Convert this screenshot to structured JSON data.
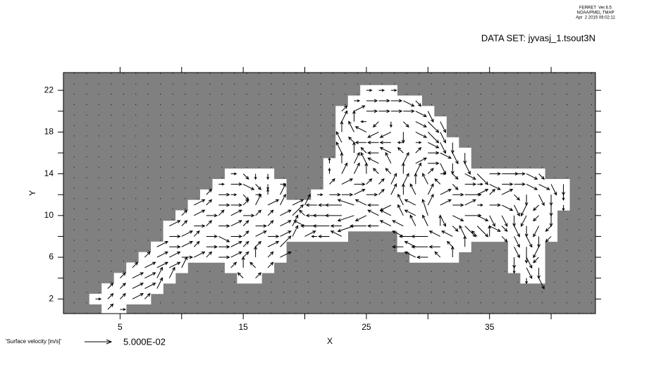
{
  "header": {
    "lines": [
      "FERRET  Ver.6.5",
      "NOAA/PMEL TMAP",
      "Apr  2 2015 06:02:11"
    ],
    "dataset": "DATA SET: jyvasj_1.tsout3N"
  },
  "chart_data": {
    "type": "vector",
    "xlabel": "X",
    "ylabel": "Y",
    "xlim": [
      0.4,
      43.6
    ],
    "ylim": [
      0.6,
      23.7
    ],
    "xticks": [
      5,
      15,
      25,
      35
    ],
    "x_minor_ticks": [
      10,
      20,
      30,
      40
    ],
    "yticks": [
      2,
      6,
      10,
      14,
      18,
      22
    ],
    "y_minor_ticks": [
      4,
      8,
      12,
      16,
      20
    ],
    "background_color": "#808080",
    "ocean_color": "#ffffff",
    "vector_color": "#000000",
    "reference": {
      "label": "'Surface velocity [m/s]'",
      "value": 0.05,
      "value_label": "5.000E-02"
    },
    "rows": [
      {
        "y": 1,
        "x": [
          4,
          5
        ],
        "u": [
          0.01,
          0.01
        ],
        "v": [
          0.01,
          0
        ]
      },
      {
        "y": 2,
        "x": [
          3,
          4,
          5,
          6,
          7
        ],
        "u": [
          0.01,
          0.01,
          0.01,
          0.02,
          0.01
        ],
        "v": [
          0,
          0.01,
          0.01,
          0.01,
          0.01
        ]
      },
      {
        "y": 3,
        "x": [
          4,
          5,
          6,
          7,
          8
        ],
        "u": [
          0.01,
          0.01,
          0.02,
          0.02,
          0.01
        ],
        "v": [
          0.01,
          0.01,
          0.01,
          0.01,
          0.02
        ]
      },
      {
        "y": 4,
        "x": [
          5,
          6,
          7,
          8,
          9,
          15,
          16,
          38,
          39
        ],
        "u": [
          0.01,
          0.02,
          0.02,
          0.01,
          0.01,
          -0.01,
          0.01,
          0,
          0.01
        ],
        "v": [
          0.01,
          0.01,
          0.01,
          0.02,
          0.02,
          0.01,
          0.01,
          -0.01,
          -0.02
        ]
      },
      {
        "y": 5,
        "x": [
          6,
          7,
          8,
          9,
          10,
          14,
          15,
          16,
          17,
          37,
          38,
          39
        ],
        "u": [
          0.01,
          0.02,
          0.02,
          0.02,
          0.01,
          0.01,
          0,
          -0.01,
          0.01,
          0,
          0.01,
          0
        ],
        "v": [
          0.01,
          0.01,
          0.01,
          0.01,
          0.02,
          0.01,
          0.02,
          0.01,
          0.01,
          -0.01,
          -0.02,
          -0.02
        ]
      },
      {
        "y": 6,
        "x": [
          7,
          8,
          9,
          10,
          11,
          12,
          13,
          14,
          15,
          16,
          17,
          18,
          29,
          30,
          31,
          32,
          37,
          38,
          39
        ],
        "u": [
          0.01,
          0.02,
          0.02,
          0.02,
          0.02,
          0.01,
          0.02,
          0.02,
          0.01,
          0,
          0.01,
          0.02,
          -0.02,
          -0.02,
          -0.01,
          0,
          0,
          0.01,
          -0.01
        ],
        "v": [
          0.01,
          0.01,
          0.01,
          0,
          0.01,
          0.01,
          0,
          0.01,
          0.01,
          0.02,
          0.01,
          0.01,
          0.01,
          0,
          0.01,
          0.02,
          -0.02,
          -0.02,
          -0.01
        ]
      },
      {
        "y": 7,
        "x": [
          8,
          9,
          10,
          11,
          12,
          13,
          14,
          15,
          16,
          17,
          18,
          28,
          29,
          30,
          31,
          32,
          33,
          37,
          38,
          39
        ],
        "u": [
          0.02,
          0.02,
          0.02,
          0.01,
          0.02,
          0.02,
          0.02,
          0.01,
          0.01,
          0.02,
          0.02,
          -0.02,
          -0.02,
          -0.03,
          -0.02,
          -0.01,
          0,
          0.01,
          0,
          -0.01
        ],
        "v": [
          0.01,
          0,
          0.01,
          0.01,
          0,
          0,
          0.01,
          0.01,
          0.01,
          0.01,
          0.02,
          0,
          0.01,
          0,
          0,
          0.01,
          0.02,
          -0.02,
          -0.03,
          -0.02
        ]
      },
      {
        "y": 8,
        "x": [
          9,
          10,
          11,
          12,
          13,
          14,
          15,
          16,
          17,
          18,
          19,
          20,
          21,
          22,
          23,
          28,
          29,
          30,
          31,
          32,
          33,
          34,
          35,
          36,
          37,
          38,
          39,
          40
        ],
        "u": [
          0.02,
          0.02,
          0.01,
          0.02,
          0.02,
          0.02,
          0.01,
          0.02,
          0.02,
          0.02,
          0.01,
          0.02,
          -0.01,
          -0.02,
          -0.02,
          -0.02,
          -0.03,
          -0.03,
          -0.02,
          -0.02,
          -0.01,
          -0.01,
          0,
          0.01,
          0.01,
          0.01,
          0,
          -0.01
        ],
        "v": [
          0,
          0.01,
          0.01,
          0,
          -0.01,
          0,
          0.01,
          0.01,
          0,
          0.01,
          0.02,
          0.01,
          0,
          0,
          0.01,
          0.01,
          0,
          0,
          0.01,
          0.01,
          0.02,
          0.01,
          0.02,
          -0.01,
          -0.02,
          -0.02,
          -0.02,
          -0.01
        ]
      },
      {
        "y": 9,
        "x": [
          9,
          10,
          11,
          12,
          13,
          14,
          15,
          16,
          17,
          18,
          19,
          20,
          21,
          22,
          23,
          24,
          25,
          26,
          27,
          28,
          29,
          30,
          31,
          32,
          33,
          34,
          35,
          36,
          37,
          38,
          39,
          40
        ],
        "u": [
          0.02,
          0.01,
          0.02,
          0.01,
          0.02,
          0.02,
          0.01,
          0.02,
          0.01,
          0.02,
          0.01,
          -0.02,
          -0.03,
          -0.03,
          -0.02,
          -0.03,
          -0.03,
          -0.02,
          -0.02,
          -0.02,
          -0.01,
          -0.01,
          0,
          0.01,
          0.02,
          0.02,
          0.02,
          0.01,
          0.01,
          0,
          -0.01,
          -0.01
        ],
        "v": [
          0.01,
          0.01,
          0,
          0.01,
          0,
          0.01,
          0.01,
          0,
          0.01,
          0.01,
          0.02,
          0.01,
          0,
          0,
          0,
          -0.01,
          0,
          0,
          0.01,
          0.01,
          0.02,
          0.02,
          0.02,
          -0.01,
          -0.02,
          -0.02,
          -0.01,
          -0.01,
          -0.02,
          -0.02,
          -0.02,
          -0.01
        ]
      },
      {
        "y": 10,
        "x": [
          10,
          11,
          12,
          13,
          14,
          15,
          16,
          17,
          18,
          19,
          20,
          21,
          22,
          23,
          24,
          25,
          26,
          27,
          28,
          29,
          30,
          31,
          32,
          33,
          34,
          35,
          36,
          37,
          38,
          39,
          40
        ],
        "u": [
          0.01,
          0.02,
          0.02,
          0.01,
          0.02,
          0.02,
          0.01,
          0.01,
          0.02,
          0.02,
          -0.01,
          -0.02,
          -0.03,
          -0.03,
          -0.03,
          -0.02,
          -0.02,
          -0.02,
          -0.01,
          -0.02,
          -0.01,
          0.01,
          0.02,
          0.03,
          0.02,
          0.01,
          0.01,
          0,
          -0.01,
          -0.01,
          0
        ],
        "v": [
          0.01,
          0.01,
          0,
          0.01,
          0.01,
          0,
          0.01,
          0.01,
          0.01,
          0.02,
          0.01,
          0,
          0,
          0,
          -0.01,
          -0.01,
          0.01,
          0.01,
          0.02,
          0.01,
          0.03,
          -0.02,
          -0.01,
          0,
          -0.01,
          -0.02,
          -0.02,
          -0.02,
          -0.02,
          -0.01,
          -0.02
        ]
      },
      {
        "y": 11,
        "x": [
          11,
          12,
          13,
          14,
          15,
          16,
          17,
          18,
          19,
          20,
          21,
          22,
          23,
          24,
          25,
          26,
          27,
          28,
          29,
          30,
          31,
          32,
          33,
          34,
          35,
          36,
          37,
          38,
          39,
          40,
          41
        ],
        "u": [
          0.02,
          0.01,
          0.02,
          0.02,
          0.01,
          0.01,
          0.02,
          0.01,
          0.02,
          0.01,
          -0.02,
          -0.02,
          -0.03,
          -0.03,
          -0.02,
          -0.02,
          -0.02,
          -0.01,
          -0.02,
          0.01,
          0.02,
          0.02,
          0.02,
          0.01,
          0.02,
          0.02,
          0.01,
          -0.01,
          -0.01,
          0,
          0
        ],
        "v": [
          0.01,
          0.01,
          0,
          0,
          0.01,
          0.02,
          0.01,
          0.02,
          0.01,
          0.02,
          0,
          0,
          0,
          0.01,
          0.01,
          0,
          -0.01,
          0.02,
          0.01,
          0.02,
          0.01,
          0,
          0.01,
          0,
          0,
          -0.01,
          -0.02,
          -0.02,
          -0.01,
          -0.02,
          -0.01
        ]
      },
      {
        "y": 12,
        "x": [
          12,
          13,
          14,
          15,
          16,
          17,
          18,
          21,
          22,
          23,
          24,
          25,
          26,
          27,
          28,
          29,
          30,
          31,
          32,
          33,
          34,
          35,
          36,
          37,
          38,
          39,
          40,
          41
        ],
        "u": [
          0.01,
          0.02,
          0.01,
          0.01,
          0.01,
          0,
          0.01,
          0.01,
          0.02,
          0.02,
          0.02,
          0.02,
          0.01,
          0.01,
          0,
          -0.01,
          0.01,
          0.02,
          0.02,
          0.03,
          0.02,
          0.01,
          0.02,
          0.01,
          0,
          0.01,
          0,
          0
        ],
        "v": [
          0.01,
          0,
          0,
          -0.01,
          0,
          0.01,
          0.02,
          0,
          0,
          0,
          0.01,
          0,
          0.01,
          0.02,
          0.02,
          0.02,
          0.02,
          0.01,
          0,
          0,
          0.01,
          0.01,
          0.01,
          -0.01,
          -0.02,
          -0.02,
          -0.02,
          -0.01
        ]
      },
      {
        "y": 13,
        "x": [
          13,
          14,
          15,
          16,
          17,
          18,
          22,
          23,
          24,
          25,
          26,
          27,
          28,
          29,
          30,
          31,
          32,
          33,
          34,
          35,
          36,
          37,
          38,
          39,
          40,
          41
        ],
        "u": [
          0.01,
          0.02,
          0.02,
          0.01,
          0,
          0.01,
          0.01,
          0.02,
          0.02,
          0.01,
          0.01,
          0.01,
          0.01,
          0,
          -0.01,
          -0.01,
          0.01,
          0.02,
          0.01,
          0.02,
          0.02,
          0.02,
          0.02,
          0.02,
          0.01,
          0
        ],
        "v": [
          0,
          0,
          -0.01,
          -0.01,
          -0.01,
          0,
          0.01,
          0.01,
          0,
          0.01,
          0.01,
          0.02,
          0.02,
          0.02,
          0.02,
          0.01,
          -0.01,
          0,
          0,
          -0.01,
          0,
          0,
          -0.01,
          -0.01,
          -0.02,
          -0.02
        ]
      },
      {
        "y": 14,
        "x": [
          14,
          15,
          16,
          17,
          22,
          23,
          24,
          25,
          26,
          27,
          28,
          29,
          30,
          31,
          32,
          33,
          34,
          35,
          36,
          37,
          38,
          39
        ],
        "u": [
          0.01,
          0.01,
          0,
          0,
          0,
          0.01,
          0.01,
          0,
          -0.01,
          -0.01,
          0,
          0.01,
          0.01,
          0.01,
          0.01,
          0.02,
          0.02,
          0.02,
          0.03,
          0.02,
          0.02,
          0.01
        ],
        "v": [
          0,
          -0.01,
          -0.01,
          -0.01,
          0.01,
          0.02,
          0.02,
          0.02,
          0.01,
          0.01,
          0.02,
          0.02,
          0.01,
          0,
          -0.01,
          -0.01,
          -0.02,
          0,
          0,
          0,
          -0.01,
          -0.01
        ]
      },
      {
        "y": 15,
        "x": [
          22,
          23,
          24,
          25,
          26,
          27,
          28,
          29,
          30,
          31,
          32,
          33
        ],
        "u": [
          0,
          0,
          0.01,
          -0.01,
          -0.02,
          -0.01,
          0.01,
          0.02,
          0.02,
          0.01,
          0,
          0.01
        ],
        "v": [
          0.01,
          0.02,
          0.02,
          0.02,
          0.01,
          0.02,
          0.02,
          0.01,
          0,
          -0.02,
          -0.02,
          -0.02
        ]
      },
      {
        "y": 16,
        "x": [
          23,
          24,
          25,
          26,
          27,
          28,
          29,
          30,
          31,
          32,
          33
        ],
        "u": [
          -0.01,
          0,
          -0.01,
          -0.02,
          -0.02,
          -0.01,
          0.01,
          0.02,
          0.02,
          0.01,
          0
        ],
        "v": [
          0.02,
          0.02,
          0.01,
          0,
          0.01,
          0.01,
          0.01,
          0,
          -0.01,
          -0.02,
          -0.02
        ]
      },
      {
        "y": 17,
        "x": [
          23,
          24,
          25,
          26,
          27,
          28,
          29,
          30,
          31,
          32
        ],
        "u": [
          -0.01,
          -0.01,
          -0.02,
          -0.02,
          -0.02,
          -0.01,
          0.01,
          0.02,
          0.01,
          0
        ],
        "v": [
          0.02,
          0.01,
          0,
          0,
          0,
          0,
          0,
          -0.01,
          -0.02,
          -0.02
        ]
      },
      {
        "y": 18,
        "x": [
          23,
          24,
          25,
          26,
          27,
          28,
          29,
          30,
          31
        ],
        "u": [
          0,
          -0.01,
          -0.02,
          -0.02,
          -0.02,
          0,
          0.02,
          0.02,
          0.01
        ],
        "v": [
          0.02,
          0.02,
          0.01,
          -0.01,
          -0.01,
          -0.02,
          -0.01,
          -0.02,
          -0.02
        ]
      },
      {
        "y": 19,
        "x": [
          23,
          24,
          25,
          26,
          27,
          28,
          29,
          30,
          31
        ],
        "u": [
          0.01,
          0,
          -0.01,
          -0.01,
          0,
          0.01,
          0.02,
          0.02,
          0.01
        ],
        "v": [
          0.02,
          0.02,
          0,
          -0.01,
          -0.01,
          -0.01,
          -0.01,
          -0.02,
          -0.02
        ]
      },
      {
        "y": 20,
        "x": [
          23,
          24,
          25,
          26,
          27,
          28,
          29,
          30
        ],
        "u": [
          0.01,
          0.02,
          0.02,
          0.02,
          0.02,
          0.02,
          0.02,
          0.01
        ],
        "v": [
          0.01,
          0.01,
          0,
          0,
          0,
          0,
          -0.01,
          -0.02
        ]
      },
      {
        "y": 21,
        "x": [
          24,
          25,
          26,
          27,
          28,
          29
        ],
        "u": [
          0.01,
          0.02,
          0.02,
          0.02,
          0.02,
          0.01
        ],
        "v": [
          0,
          0,
          0,
          0,
          -0.01,
          -0.01
        ]
      },
      {
        "y": 22,
        "x": [
          25,
          26,
          27
        ],
        "u": [
          0.01,
          0.01,
          0.01
        ],
        "v": [
          0,
          0,
          0
        ]
      }
    ]
  }
}
